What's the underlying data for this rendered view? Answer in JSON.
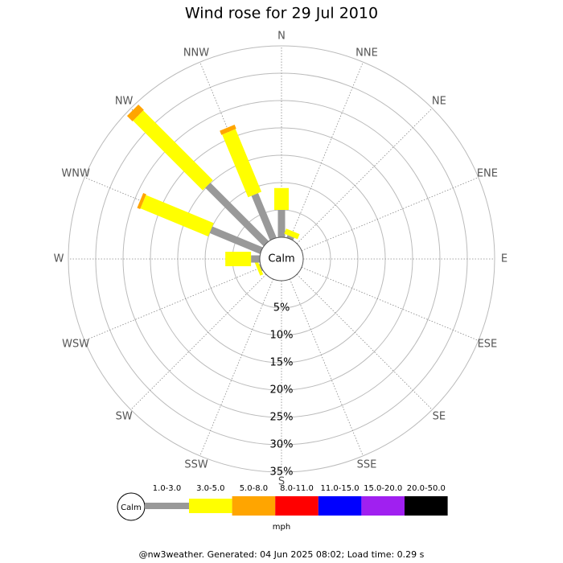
{
  "chart_data": {
    "type": "windrose",
    "title": "Wind rose for 29 Jul 2010",
    "directions": [
      "N",
      "NNE",
      "NE",
      "ENE",
      "E",
      "ESE",
      "SE",
      "SSE",
      "S",
      "SSW",
      "SW",
      "WSW",
      "W",
      "WNW",
      "NW",
      "NNW"
    ],
    "series": [
      {
        "name": "1.0-3.0",
        "color": "#999999",
        "values": [
          5,
          0.5,
          0,
          0,
          0,
          0,
          0,
          0,
          0,
          0,
          0,
          0.2,
          1.6,
          10,
          15.1,
          8.8
        ]
      },
      {
        "name": "3.0-5.0",
        "color": "#ffff00",
        "values": [
          4,
          1,
          0,
          0,
          0,
          0,
          0,
          0,
          0,
          0,
          0,
          0.6,
          4.7,
          13.4,
          18,
          12.4
        ]
      },
      {
        "name": "5.0-8.0",
        "color": "#ffa500",
        "values": [
          0,
          0,
          0,
          0,
          0,
          0,
          0,
          0,
          0,
          0,
          0,
          0,
          0,
          0.6,
          1.4,
          0.8
        ]
      },
      {
        "name": "8.0-11.0",
        "color": "#ff0000",
        "values": [
          0,
          0,
          0,
          0,
          0,
          0,
          0,
          0,
          0,
          0,
          0,
          0,
          0,
          0,
          0,
          0
        ]
      },
      {
        "name": "11.0-15.0",
        "color": "#0000ff",
        "values": [
          0,
          0,
          0,
          0,
          0,
          0,
          0,
          0,
          0,
          0,
          0,
          0,
          0,
          0,
          0,
          0
        ]
      },
      {
        "name": "15.0-20.0",
        "color": "#a020f0",
        "values": [
          0,
          0,
          0,
          0,
          0,
          0,
          0,
          0,
          0,
          0,
          0,
          0,
          0,
          0,
          0,
          0
        ]
      },
      {
        "name": "20.0-50.0",
        "color": "#000000",
        "values": [
          0,
          0,
          0,
          0,
          0,
          0,
          0,
          0,
          0,
          0,
          0,
          0,
          0,
          0,
          0,
          0
        ]
      }
    ],
    "rlim": [
      0,
      35
    ],
    "rticks": [
      {
        "value": 5,
        "label": "5%"
      },
      {
        "value": 10,
        "label": "10%"
      },
      {
        "value": 15,
        "label": "15%"
      },
      {
        "value": 20,
        "label": "20%"
      },
      {
        "value": 25,
        "label": "25%"
      },
      {
        "value": 30,
        "label": "30%"
      },
      {
        "value": 35,
        "label": "35%"
      }
    ],
    "calm_label": "Calm",
    "unit": "mph",
    "footer": "@nw3weather. Generated: 04 Jun 2025 08:02; Load time: 0.29 s"
  }
}
